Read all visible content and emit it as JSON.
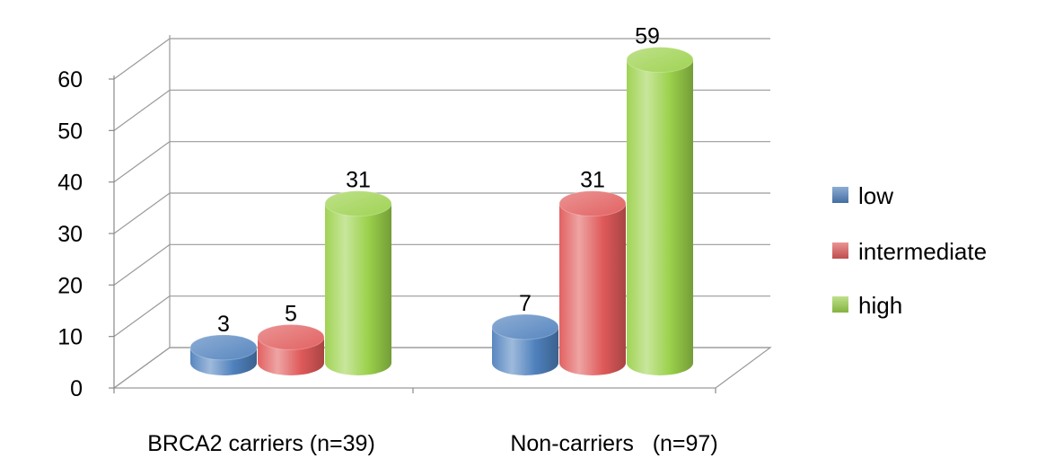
{
  "chart_data": {
    "type": "bar",
    "categories": [
      "BRCA2 carriers (n=39)",
      "Non-carriers   (n=97)"
    ],
    "series": [
      {
        "name": "low",
        "values": [
          3,
          7
        ],
        "color": "#4f81bd"
      },
      {
        "name": "intermediate",
        "values": [
          5,
          31
        ],
        "color": "#e05a5a"
      },
      {
        "name": "high",
        "values": [
          31,
          59
        ],
        "color": "#9bd14b"
      }
    ],
    "ylim": [
      0,
      60
    ],
    "yticks": [
      0,
      10,
      20,
      30,
      40,
      50,
      60
    ],
    "grid": true,
    "legend": "right",
    "style": "3d-cylinder"
  }
}
